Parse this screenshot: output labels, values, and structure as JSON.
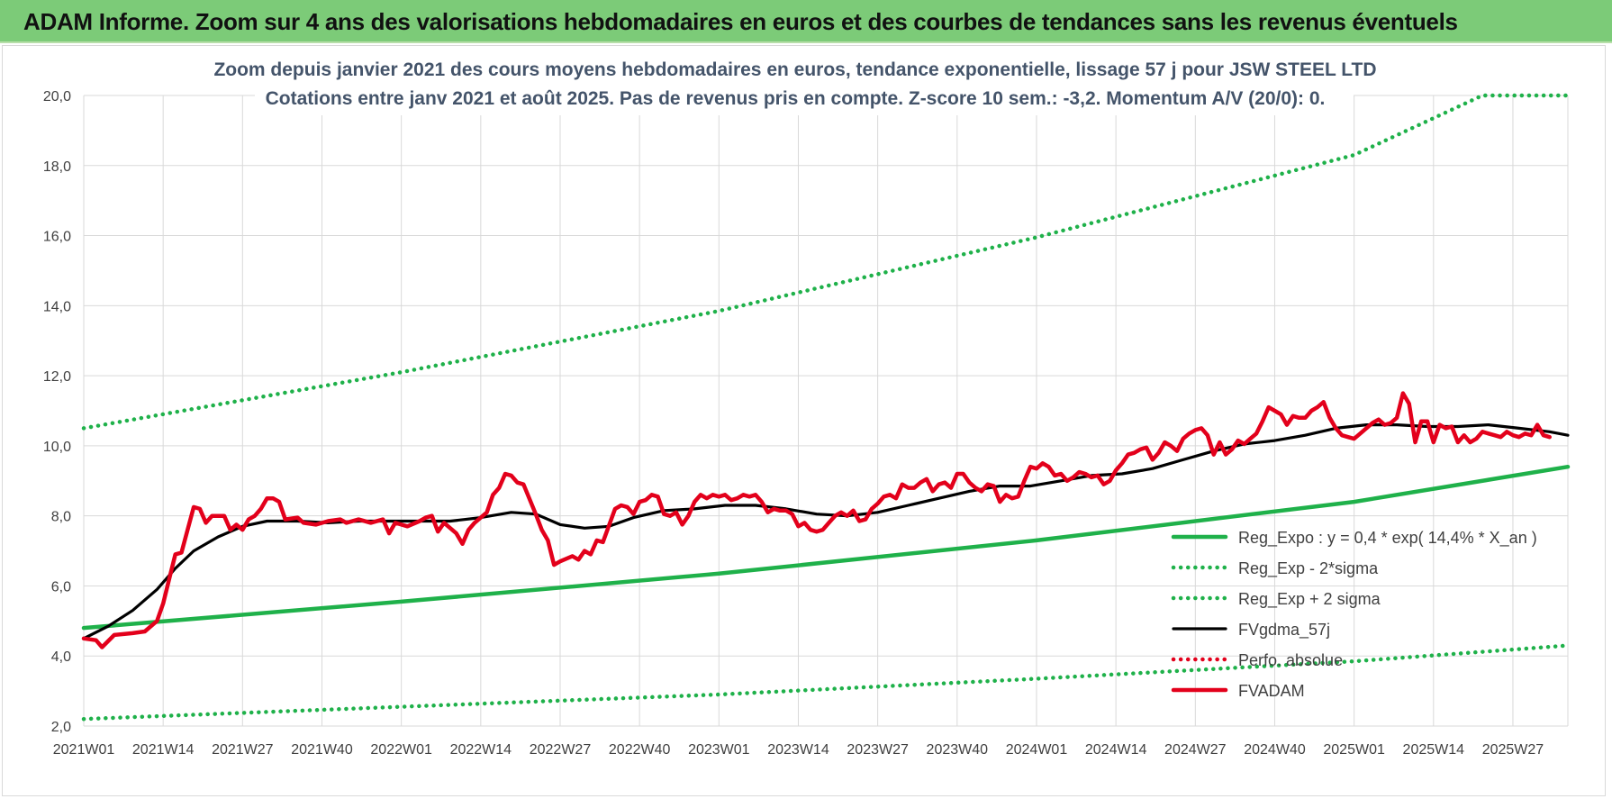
{
  "banner": {
    "title": "ADAM Informe. Zoom sur 4 ans des valorisations hebdomadaires en euros et des courbes de tendances sans les revenus éventuels"
  },
  "colors": {
    "banner_bg": "#7ccb78",
    "green": "#1fb14a",
    "black": "#000000",
    "red": "#e3001b",
    "red_dotted": "#e3001b",
    "grid": "#d9d9d9"
  },
  "chart_data": {
    "type": "line",
    "title": "Zoom depuis janvier 2021 des cours moyens hebdomadaires en euros, tendance exponentielle, lissage 57 j pour JSW STEEL LTD",
    "subtitle": "Cotations entre janv 2021 et août 2025.  Pas de revenus pris en compte. Z-score 10 sem.: -3,2. Momentum A/V (20/0): 0.",
    "xlabel": "",
    "ylabel": "",
    "ylim": [
      2,
      20
    ],
    "y_ticks": [
      "2,0",
      "4,0",
      "6,0",
      "8,0",
      "10,0",
      "12,0",
      "14,0",
      "16,0",
      "18,0",
      "20,0"
    ],
    "x_ticks": [
      "2021W01",
      "2021W14",
      "2021W27",
      "2021W40",
      "2022W01",
      "2022W14",
      "2022W27",
      "2022W40",
      "2023W01",
      "2023W14",
      "2023W27",
      "2023W40",
      "2024W01",
      "2024W14",
      "2024W27",
      "2024W40",
      "2025W01",
      "2025W14",
      "2025W27"
    ],
    "x_range_weeks": [
      0,
      243
    ],
    "grid": "vertical and horizontal",
    "legend_position": "bottom-right",
    "series": [
      {
        "name": "Reg_Expo : y = 0,4 * exp( 14,4% *  X_an )",
        "style": "solid",
        "color": "#1fb14a",
        "points": [
          [
            0,
            4.8
          ],
          [
            52,
            5.55
          ],
          [
            104,
            6.35
          ],
          [
            156,
            7.3
          ],
          [
            208,
            8.4
          ],
          [
            243,
            9.4
          ]
        ]
      },
      {
        "name": "Reg_Exp - 2*sigma",
        "style": "dotted",
        "color": "#1fb14a",
        "points": [
          [
            0,
            2.2
          ],
          [
            52,
            2.55
          ],
          [
            104,
            2.9
          ],
          [
            156,
            3.35
          ],
          [
            208,
            3.85
          ],
          [
            243,
            4.3
          ]
        ]
      },
      {
        "name": "Reg_Exp + 2 sigma",
        "style": "dotted",
        "color": "#1fb14a",
        "points": [
          [
            0,
            10.5
          ],
          [
            52,
            12.1
          ],
          [
            104,
            13.85
          ],
          [
            156,
            15.95
          ],
          [
            208,
            18.3
          ],
          [
            229,
            20.0
          ],
          [
            243,
            20.0
          ]
        ]
      },
      {
        "name": "FVgdma_57j",
        "style": "solid",
        "color": "#000000",
        "points": [
          [
            0,
            4.5
          ],
          [
            4,
            4.85
          ],
          [
            8,
            5.3
          ],
          [
            12,
            5.9
          ],
          [
            15,
            6.5
          ],
          [
            18,
            7.0
          ],
          [
            22,
            7.4
          ],
          [
            26,
            7.7
          ],
          [
            30,
            7.85
          ],
          [
            35,
            7.85
          ],
          [
            40,
            7.8
          ],
          [
            45,
            7.85
          ],
          [
            50,
            7.85
          ],
          [
            55,
            7.85
          ],
          [
            60,
            7.85
          ],
          [
            65,
            7.95
          ],
          [
            70,
            8.1
          ],
          [
            74,
            8.05
          ],
          [
            78,
            7.75
          ],
          [
            82,
            7.65
          ],
          [
            86,
            7.7
          ],
          [
            90,
            7.95
          ],
          [
            95,
            8.15
          ],
          [
            100,
            8.2
          ],
          [
            105,
            8.3
          ],
          [
            110,
            8.3
          ],
          [
            115,
            8.2
          ],
          [
            120,
            8.05
          ],
          [
            125,
            8.0
          ],
          [
            130,
            8.1
          ],
          [
            135,
            8.3
          ],
          [
            140,
            8.5
          ],
          [
            145,
            8.7
          ],
          [
            150,
            8.85
          ],
          [
            155,
            8.85
          ],
          [
            160,
            9.0
          ],
          [
            165,
            9.15
          ],
          [
            170,
            9.2
          ],
          [
            175,
            9.35
          ],
          [
            180,
            9.6
          ],
          [
            185,
            9.85
          ],
          [
            190,
            10.05
          ],
          [
            195,
            10.15
          ],
          [
            200,
            10.3
          ],
          [
            205,
            10.5
          ],
          [
            210,
            10.6
          ],
          [
            215,
            10.6
          ],
          [
            220,
            10.55
          ],
          [
            225,
            10.55
          ],
          [
            230,
            10.6
          ],
          [
            235,
            10.5
          ],
          [
            240,
            10.4
          ],
          [
            243,
            10.3
          ]
        ]
      },
      {
        "name": "Perfo. absolue",
        "style": "dotted",
        "color": "#e3001b",
        "points": []
      },
      {
        "name": "FVADAM",
        "style": "solid",
        "color": "#e3001b",
        "points": [
          [
            0,
            4.5
          ],
          [
            2,
            4.45
          ],
          [
            3,
            4.25
          ],
          [
            5,
            4.6
          ],
          [
            8,
            4.65
          ],
          [
            10,
            4.7
          ],
          [
            12,
            5.0
          ],
          [
            13,
            5.5
          ],
          [
            14,
            6.2
          ],
          [
            15,
            6.9
          ],
          [
            16,
            6.95
          ],
          [
            17,
            7.6
          ],
          [
            18,
            8.25
          ],
          [
            19,
            8.2
          ],
          [
            20,
            7.8
          ],
          [
            21,
            8.0
          ],
          [
            23,
            8.0
          ],
          [
            24,
            7.6
          ],
          [
            25,
            7.75
          ],
          [
            26,
            7.6
          ],
          [
            27,
            7.9
          ],
          [
            28,
            8.0
          ],
          [
            29,
            8.2
          ],
          [
            30,
            8.5
          ],
          [
            31,
            8.5
          ],
          [
            32,
            8.4
          ],
          [
            33,
            7.9
          ],
          [
            35,
            7.95
          ],
          [
            36,
            7.8
          ],
          [
            38,
            7.75
          ],
          [
            40,
            7.85
          ],
          [
            42,
            7.9
          ],
          [
            43,
            7.8
          ],
          [
            45,
            7.9
          ],
          [
            47,
            7.8
          ],
          [
            49,
            7.9
          ],
          [
            50,
            7.5
          ],
          [
            51,
            7.8
          ],
          [
            53,
            7.7
          ],
          [
            55,
            7.85
          ],
          [
            56,
            7.95
          ],
          [
            57,
            8.0
          ],
          [
            58,
            7.55
          ],
          [
            59,
            7.8
          ],
          [
            61,
            7.5
          ],
          [
            62,
            7.2
          ],
          [
            63,
            7.6
          ],
          [
            64,
            7.8
          ],
          [
            66,
            8.1
          ],
          [
            67,
            8.6
          ],
          [
            68,
            8.8
          ],
          [
            69,
            9.2
          ],
          [
            70,
            9.15
          ],
          [
            71,
            8.95
          ],
          [
            72,
            8.9
          ],
          [
            74,
            8.05
          ],
          [
            75,
            7.6
          ],
          [
            76,
            7.3
          ],
          [
            77,
            6.6
          ],
          [
            78,
            6.7
          ],
          [
            80,
            6.85
          ],
          [
            81,
            6.75
          ],
          [
            82,
            7.0
          ],
          [
            83,
            6.9
          ],
          [
            84,
            7.3
          ],
          [
            85,
            7.25
          ],
          [
            87,
            8.2
          ],
          [
            88,
            8.3
          ],
          [
            89,
            8.25
          ],
          [
            90,
            8.05
          ],
          [
            91,
            8.4
          ],
          [
            92,
            8.45
          ],
          [
            93,
            8.6
          ],
          [
            94,
            8.55
          ],
          [
            95,
            8.05
          ],
          [
            96,
            8.0
          ],
          [
            97,
            8.1
          ],
          [
            98,
            7.75
          ],
          [
            99,
            8.0
          ],
          [
            100,
            8.4
          ],
          [
            101,
            8.6
          ],
          [
            102,
            8.5
          ],
          [
            103,
            8.6
          ],
          [
            104,
            8.55
          ],
          [
            105,
            8.6
          ],
          [
            106,
            8.45
          ],
          [
            107,
            8.5
          ],
          [
            108,
            8.6
          ],
          [
            109,
            8.55
          ],
          [
            110,
            8.6
          ],
          [
            111,
            8.4
          ],
          [
            112,
            8.1
          ],
          [
            113,
            8.2
          ],
          [
            114,
            8.15
          ],
          [
            115,
            8.15
          ],
          [
            116,
            8.05
          ],
          [
            117,
            7.7
          ],
          [
            118,
            7.8
          ],
          [
            119,
            7.6
          ],
          [
            120,
            7.55
          ],
          [
            121,
            7.6
          ],
          [
            122,
            7.8
          ],
          [
            123,
            8.0
          ],
          [
            124,
            8.1
          ],
          [
            125,
            8.0
          ],
          [
            126,
            8.15
          ],
          [
            127,
            7.85
          ],
          [
            128,
            7.9
          ],
          [
            129,
            8.2
          ],
          [
            130,
            8.35
          ],
          [
            131,
            8.55
          ],
          [
            132,
            8.6
          ],
          [
            133,
            8.5
          ],
          [
            134,
            8.9
          ],
          [
            135,
            8.8
          ],
          [
            136,
            8.8
          ],
          [
            137,
            8.95
          ],
          [
            138,
            9.05
          ],
          [
            139,
            8.7
          ],
          [
            140,
            8.9
          ],
          [
            141,
            8.95
          ],
          [
            142,
            8.8
          ],
          [
            143,
            9.2
          ],
          [
            144,
            9.2
          ],
          [
            145,
            8.95
          ],
          [
            146,
            8.8
          ],
          [
            147,
            8.7
          ],
          [
            148,
            8.9
          ],
          [
            149,
            8.85
          ],
          [
            150,
            8.4
          ],
          [
            151,
            8.6
          ],
          [
            152,
            8.5
          ],
          [
            153,
            8.55
          ],
          [
            154,
            9.0
          ],
          [
            155,
            9.4
          ],
          [
            156,
            9.35
          ],
          [
            157,
            9.5
          ],
          [
            158,
            9.4
          ],
          [
            159,
            9.15
          ],
          [
            160,
            9.2
          ],
          [
            161,
            9.0
          ],
          [
            162,
            9.1
          ],
          [
            163,
            9.25
          ],
          [
            164,
            9.2
          ],
          [
            165,
            9.1
          ],
          [
            166,
            9.15
          ],
          [
            167,
            8.9
          ],
          [
            168,
            9.0
          ],
          [
            169,
            9.3
          ],
          [
            170,
            9.5
          ],
          [
            171,
            9.75
          ],
          [
            172,
            9.8
          ],
          [
            173,
            9.9
          ],
          [
            174,
            9.95
          ],
          [
            175,
            9.6
          ],
          [
            176,
            9.8
          ],
          [
            177,
            10.1
          ],
          [
            178,
            10.0
          ],
          [
            179,
            9.85
          ],
          [
            180,
            10.2
          ],
          [
            181,
            10.35
          ],
          [
            182,
            10.45
          ],
          [
            183,
            10.5
          ],
          [
            184,
            10.3
          ],
          [
            185,
            9.75
          ],
          [
            186,
            10.1
          ],
          [
            187,
            9.75
          ],
          [
            188,
            9.9
          ],
          [
            189,
            10.15
          ],
          [
            190,
            10.05
          ],
          [
            191,
            10.2
          ],
          [
            192,
            10.35
          ],
          [
            193,
            10.7
          ],
          [
            194,
            11.1
          ],
          [
            195,
            11.0
          ],
          [
            196,
            10.9
          ],
          [
            197,
            10.6
          ],
          [
            198,
            10.85
          ],
          [
            199,
            10.8
          ],
          [
            200,
            10.8
          ],
          [
            201,
            11.0
          ],
          [
            202,
            11.1
          ],
          [
            203,
            11.25
          ],
          [
            204,
            10.8
          ],
          [
            205,
            10.5
          ],
          [
            206,
            10.3
          ],
          [
            207,
            10.25
          ],
          [
            208,
            10.2
          ],
          [
            209,
            10.35
          ],
          [
            210,
            10.5
          ],
          [
            211,
            10.65
          ],
          [
            212,
            10.75
          ],
          [
            213,
            10.6
          ],
          [
            214,
            10.65
          ],
          [
            215,
            10.8
          ],
          [
            216,
            11.5
          ],
          [
            217,
            11.2
          ],
          [
            218,
            10.1
          ],
          [
            219,
            10.7
          ],
          [
            220,
            10.7
          ],
          [
            221,
            10.1
          ],
          [
            222,
            10.6
          ],
          [
            223,
            10.5
          ],
          [
            224,
            10.55
          ],
          [
            225,
            10.1
          ],
          [
            226,
            10.3
          ],
          [
            227,
            10.1
          ],
          [
            228,
            10.2
          ],
          [
            229,
            10.4
          ],
          [
            230,
            10.35
          ],
          [
            231,
            10.3
          ],
          [
            232,
            10.25
          ],
          [
            233,
            10.4
          ],
          [
            234,
            10.3
          ],
          [
            235,
            10.25
          ],
          [
            236,
            10.35
          ],
          [
            237,
            10.3
          ],
          [
            238,
            10.6
          ],
          [
            239,
            10.3
          ],
          [
            240,
            10.25
          ]
        ]
      }
    ]
  }
}
